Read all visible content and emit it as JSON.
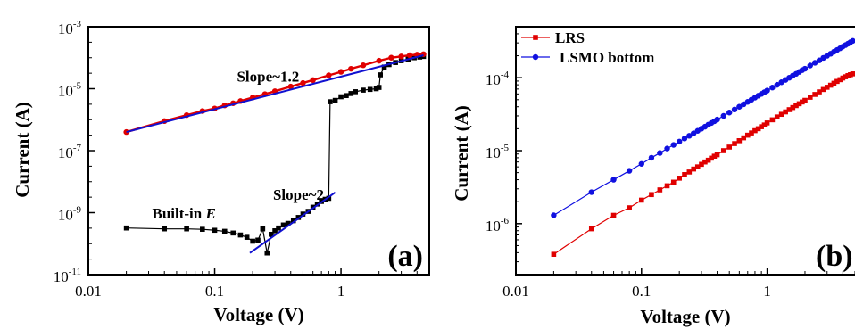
{
  "chart_data": [
    {
      "panel": "(a)",
      "type": "line",
      "xscale": "log",
      "yscale": "log",
      "xlabel": "Voltage (V)",
      "ylabel": "Current (A)",
      "xlim": [
        0.01,
        5
      ],
      "ylim": [
        1e-11,
        0.001
      ],
      "xticks": [
        {
          "value": 0.01,
          "label": "0.01"
        },
        {
          "value": 0.1,
          "label": "0.1"
        },
        {
          "value": 1,
          "label": "1"
        }
      ],
      "yticks": [
        {
          "value": 0.001,
          "base": "10",
          "exp": "-3"
        },
        {
          "value": 1e-05,
          "base": "10",
          "exp": "-5"
        },
        {
          "value": 1e-07,
          "base": "10",
          "exp": "-7"
        },
        {
          "value": 1e-09,
          "base": "10",
          "exp": "-9"
        },
        {
          "value": 1e-11,
          "base": "10",
          "exp": "-11"
        }
      ],
      "series": [
        {
          "color": "#e00000",
          "marker": "circle",
          "x": [
            0.02,
            0.04,
            0.06,
            0.08,
            0.1,
            0.12,
            0.14,
            0.16,
            0.2,
            0.25,
            0.3,
            0.4,
            0.5,
            0.6,
            0.8,
            1,
            1.2,
            1.5,
            2,
            2.5,
            3,
            3.5,
            4,
            4.5
          ],
          "y": [
            4e-07,
            9e-07,
            1.4e-06,
            1.9e-06,
            2.3e-06,
            2.9e-06,
            3.4e-06,
            4e-06,
            5.2e-06,
            6.7e-06,
            8.3e-06,
            1.17e-05,
            1.53e-05,
            1.9e-05,
            2.7e-05,
            3.5e-05,
            4.4e-05,
            5.7e-05,
            8e-05,
            0.0001,
            0.00011,
            0.00012,
            0.000125,
            0.00013
          ]
        },
        {
          "color": "#000000",
          "marker": "square",
          "x": [
            0.02,
            0.04,
            0.06,
            0.08,
            0.1,
            0.12,
            0.14,
            0.16,
            0.18,
            0.2,
            0.22,
            0.24,
            0.26,
            0.28,
            0.3,
            0.32,
            0.35,
            0.38,
            0.42,
            0.46,
            0.5,
            0.55,
            0.6,
            0.65,
            0.7,
            0.75,
            0.8,
            0.82,
            0.9,
            1.0,
            1.1,
            1.2,
            1.3,
            1.5,
            1.7,
            1.9,
            2.0,
            2.05,
            2.2,
            2.4,
            2.7,
            3.0,
            3.4,
            3.8,
            4.2,
            4.5
          ],
          "y": [
            3.2e-10,
            3e-10,
            3e-10,
            2.9e-10,
            2.7e-10,
            2.5e-10,
            2.2e-10,
            1.9e-10,
            1.6e-10,
            1.2e-10,
            1.3e-10,
            3e-10,
            5e-11,
            2e-10,
            2.6e-10,
            3.2e-10,
            4e-10,
            4.5e-10,
            5.5e-10,
            7e-10,
            9e-10,
            1.1e-09,
            1.5e-09,
            1.9e-09,
            2.3e-09,
            2.7e-09,
            2.9e-09,
            3.8e-06,
            4.2e-06,
            5.5e-06,
            6e-06,
            7e-06,
            8e-06,
            9e-06,
            9.5e-06,
            1e-05,
            1.1e-05,
            2.8e-05,
            5e-05,
            6e-05,
            7e-05,
            8e-05,
            9e-05,
            0.0001,
            0.000105,
            0.00011
          ]
        }
      ],
      "fits": [
        {
          "color": "#1010d0",
          "x": [
            0.02,
            4.5
          ],
          "y": [
            4e-07,
            0.00012
          ]
        },
        {
          "color": "#1010d0",
          "x": [
            0.19,
            0.9
          ],
          "y": [
            5e-11,
            4.5e-09
          ]
        }
      ],
      "annotations": [
        {
          "text": "Slope~1.2",
          "x": 0.15,
          "y": 1.7e-05
        },
        {
          "text": "Slope~2",
          "x": 0.29,
          "y": 2.6e-09
        },
        {
          "text": "Built-in ",
          "italic": "E",
          "x": 0.032,
          "y": 6.5e-10
        }
      ],
      "panel_label": "(a)"
    },
    {
      "panel": "(b)",
      "type": "line",
      "xscale": "log",
      "yscale": "log",
      "xlabel": "Voltage (V)",
      "ylabel": "Current (A)",
      "xlim": [
        0.01,
        5
      ],
      "ylim": [
        2e-07,
        0.0005
      ],
      "xticks": [
        {
          "value": 0.01,
          "label": "0.01"
        },
        {
          "value": 0.1,
          "label": "0.1"
        },
        {
          "value": 1,
          "label": "1"
        }
      ],
      "yticks": [
        {
          "value": 1e-06,
          "base": "10",
          "exp": "-6"
        },
        {
          "value": 1e-05,
          "base": "10",
          "exp": "-5"
        },
        {
          "value": 0.0001,
          "base": "10",
          "exp": "-4"
        }
      ],
      "legend_position": "top-left",
      "series": [
        {
          "name": "LRS",
          "color": "#e00000",
          "marker": "square",
          "x": [
            0.02,
            0.04,
            0.06,
            0.08,
            0.1,
            0.12,
            0.14,
            0.16,
            0.18,
            0.2,
            0.22,
            0.24,
            0.26,
            0.28,
            0.3,
            0.32,
            0.34,
            0.36,
            0.38,
            0.4,
            0.45,
            0.5,
            0.55,
            0.6,
            0.65,
            0.7,
            0.75,
            0.8,
            0.85,
            0.9,
            0.95,
            1.0,
            1.1,
            1.2,
            1.3,
            1.4,
            1.5,
            1.6,
            1.7,
            1.8,
            1.9,
            2.0,
            2.2,
            2.4,
            2.6,
            2.8,
            3.0,
            3.2,
            3.4,
            3.6,
            3.8,
            4.0,
            4.2,
            4.4,
            4.6,
            4.8,
            5.0
          ],
          "y": [
            3.8e-07,
            8.5e-07,
            1.3e-06,
            1.65e-06,
            2.1e-06,
            2.5e-06,
            2.9e-06,
            3.3e-06,
            3.7e-06,
            4.2e-06,
            4.7e-06,
            5.1e-06,
            5.6e-06,
            6e-06,
            6.5e-06,
            7e-06,
            7.4e-06,
            7.9e-06,
            8.4e-06,
            8.8e-06,
            1e-05,
            1.12e-05,
            1.25e-05,
            1.37e-05,
            1.5e-05,
            1.63e-05,
            1.75e-05,
            1.88e-05,
            2e-05,
            2.13e-05,
            2.25e-05,
            2.4e-05,
            2.65e-05,
            2.9e-05,
            3.15e-05,
            3.4e-05,
            3.65e-05,
            3.9e-05,
            4.15e-05,
            4.4e-05,
            4.65e-05,
            4.9e-05,
            5.4e-05,
            5.9e-05,
            6.4e-05,
            6.9e-05,
            7.4e-05,
            7.9e-05,
            8.4e-05,
            8.9e-05,
            9.4e-05,
            9.9e-05,
            0.000103,
            0.000107,
            0.00011,
            0.000113,
            0.000116
          ]
        },
        {
          "name": "LSMO bottom",
          "color": "#1010e0",
          "marker": "circle",
          "x": [
            0.02,
            0.04,
            0.06,
            0.08,
            0.1,
            0.12,
            0.14,
            0.16,
            0.18,
            0.2,
            0.22,
            0.24,
            0.26,
            0.28,
            0.3,
            0.32,
            0.34,
            0.36,
            0.38,
            0.4,
            0.45,
            0.5,
            0.55,
            0.6,
            0.65,
            0.7,
            0.75,
            0.8,
            0.85,
            0.9,
            0.95,
            1.0,
            1.1,
            1.2,
            1.3,
            1.4,
            1.5,
            1.6,
            1.7,
            1.8,
            1.9,
            2.0,
            2.2,
            2.4,
            2.6,
            2.8,
            3.0,
            3.2,
            3.4,
            3.6,
            3.8,
            4.0,
            4.2,
            4.4,
            4.6,
            4.8,
            5.0
          ],
          "y": [
            1.3e-06,
            2.7e-06,
            4e-06,
            5.3e-06,
            6.6e-06,
            8e-06,
            9.3e-06,
            1.07e-05,
            1.2e-05,
            1.33e-05,
            1.47e-05,
            1.6e-05,
            1.73e-05,
            1.87e-05,
            2e-05,
            2.13e-05,
            2.27e-05,
            2.4e-05,
            2.53e-05,
            2.67e-05,
            3e-05,
            3.33e-05,
            3.67e-05,
            4e-05,
            4.33e-05,
            4.67e-05,
            5e-05,
            5.33e-05,
            5.67e-05,
            6e-05,
            6.33e-05,
            6.67e-05,
            7.33e-05,
            8e-05,
            8.67e-05,
            9.33e-05,
            0.0001,
            0.000107,
            0.000113,
            0.00012,
            0.000127,
            0.000133,
            0.000147,
            0.00016,
            0.000173,
            0.000187,
            0.0002,
            0.000213,
            0.000227,
            0.00024,
            0.000253,
            0.000267,
            0.00028,
            0.000293,
            0.000307,
            0.00032,
            0.000333
          ]
        }
      ],
      "panel_label": "(b)"
    }
  ]
}
